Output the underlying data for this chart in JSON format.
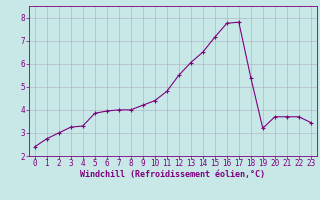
{
  "x": [
    0,
    1,
    2,
    3,
    4,
    5,
    6,
    7,
    8,
    9,
    10,
    11,
    12,
    13,
    14,
    15,
    16,
    17,
    18,
    19,
    20,
    21,
    22,
    23
  ],
  "y": [
    2.4,
    2.75,
    3.0,
    3.25,
    3.3,
    3.85,
    3.95,
    4.0,
    4.0,
    4.2,
    4.4,
    4.8,
    5.5,
    6.05,
    6.5,
    7.15,
    7.75,
    7.8,
    5.4,
    3.2,
    3.7,
    3.7,
    3.7,
    3.45
  ],
  "line_color": "#800080",
  "marker": "+",
  "marker_size": 3,
  "background_color": "#c8e8e8",
  "grid_color": "#b0b8c8",
  "xlabel": "Windchill (Refroidissement éolien,°C)",
  "xlabel_color": "#800080",
  "xlabel_fontsize": 6,
  "tick_color": "#800080",
  "tick_fontsize": 5.5,
  "ylim": [
    2,
    8.5
  ],
  "xlim": [
    -0.5,
    23.5
  ],
  "yticks": [
    2,
    3,
    4,
    5,
    6,
    7,
    8
  ],
  "xticks": [
    0,
    1,
    2,
    3,
    4,
    5,
    6,
    7,
    8,
    9,
    10,
    11,
    12,
    13,
    14,
    15,
    16,
    17,
    18,
    19,
    20,
    21,
    22,
    23
  ]
}
